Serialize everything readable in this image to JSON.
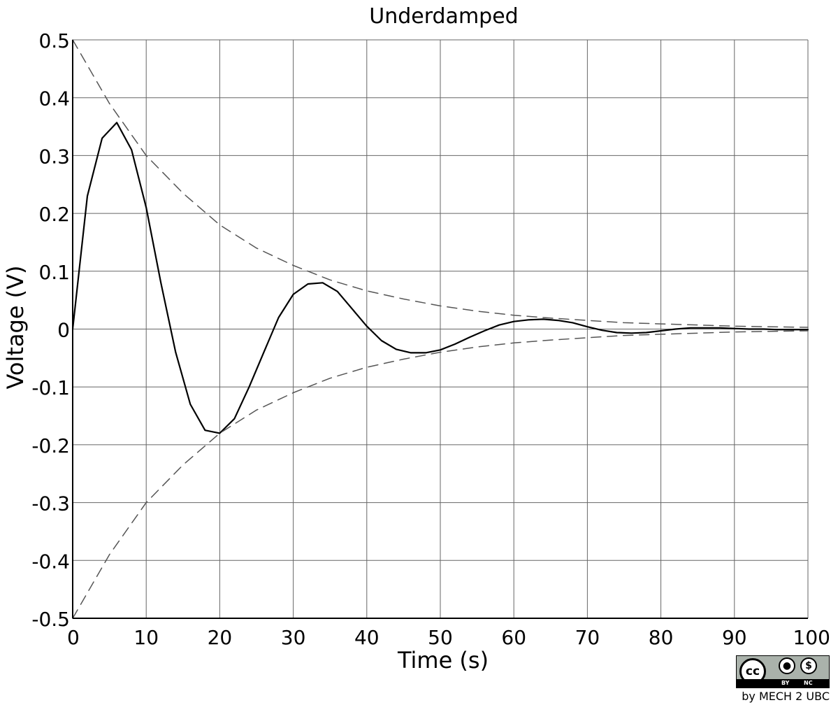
{
  "chart_data": {
    "type": "line",
    "title": "Underdamped",
    "xlabel": "Time (s)",
    "ylabel": "Voltage (V)",
    "xlim": [
      0,
      100
    ],
    "ylim": [
      -0.5,
      0.5
    ],
    "x_ticks": [
      "0",
      "10",
      "20",
      "30",
      "40",
      "50",
      "60",
      "70",
      "80",
      "90",
      "100"
    ],
    "y_ticks": [
      "0.5",
      "0.4",
      "0.3",
      "0.2",
      "0.1",
      "0",
      "-0.1",
      "-0.2",
      "-0.3",
      "-0.4",
      "-0.5"
    ],
    "grid": true,
    "legend": "none",
    "series": [
      {
        "style": "solid",
        "color": "#000000",
        "x": [
          0,
          2,
          4,
          6,
          8,
          10,
          12,
          14,
          16,
          18,
          20,
          22,
          24,
          26,
          28,
          30,
          32,
          34,
          36,
          38,
          40,
          42,
          44,
          46,
          48,
          50,
          52,
          54,
          56,
          58,
          60,
          62,
          64,
          66,
          68,
          70,
          72,
          74,
          76,
          78,
          80,
          82,
          84,
          86,
          88,
          90,
          92,
          94,
          96,
          98,
          100
        ],
        "y": [
          0,
          0.23,
          0.33,
          0.357,
          0.31,
          0.21,
          0.08,
          -0.04,
          -0.13,
          -0.175,
          -0.18,
          -0.155,
          -0.1,
          -0.04,
          0.02,
          0.06,
          0.078,
          0.08,
          0.065,
          0.035,
          0.005,
          -0.02,
          -0.035,
          -0.041,
          -0.041,
          -0.036,
          -0.026,
          -0.014,
          -0.003,
          0.007,
          0.013,
          0.016,
          0.017,
          0.015,
          0.011,
          0.004,
          -0.002,
          -0.006,
          -0.007,
          -0.006,
          -0.003,
          0,
          0.002,
          0.002,
          0.002,
          0.001,
          0,
          0,
          -0.001,
          -0.001,
          -0.001
        ]
      },
      {
        "style": "dashed",
        "color": "#555555",
        "x": [
          0,
          5,
          10,
          15,
          20,
          25,
          30,
          35,
          40,
          45,
          50,
          55,
          60,
          65,
          70,
          75,
          80,
          85,
          90,
          95,
          100
        ],
        "y": [
          0.5,
          0.39,
          0.3,
          0.235,
          0.18,
          0.14,
          0.11,
          0.085,
          0.066,
          0.052,
          0.04,
          0.031,
          0.024,
          0.019,
          0.015,
          0.011,
          0.009,
          0.007,
          0.005,
          0.004,
          0.003
        ]
      },
      {
        "style": "dashed",
        "color": "#555555",
        "x": [
          0,
          5,
          10,
          15,
          20,
          25,
          30,
          35,
          40,
          45,
          50,
          55,
          60,
          65,
          70,
          75,
          80,
          85,
          90,
          95,
          100
        ],
        "y": [
          -0.5,
          -0.39,
          -0.3,
          -0.235,
          -0.18,
          -0.14,
          -0.11,
          -0.085,
          -0.066,
          -0.052,
          -0.04,
          -0.031,
          -0.024,
          -0.019,
          -0.015,
          -0.011,
          -0.009,
          -0.007,
          -0.005,
          -0.004,
          -0.003
        ]
      }
    ]
  },
  "license": {
    "cc_label": "cc",
    "by_label": "BY",
    "nc_label": "NC",
    "credit": "by MECH 2 UBC"
  },
  "icons": {
    "person": "person-icon",
    "no_dollar": "no-dollar-icon"
  }
}
